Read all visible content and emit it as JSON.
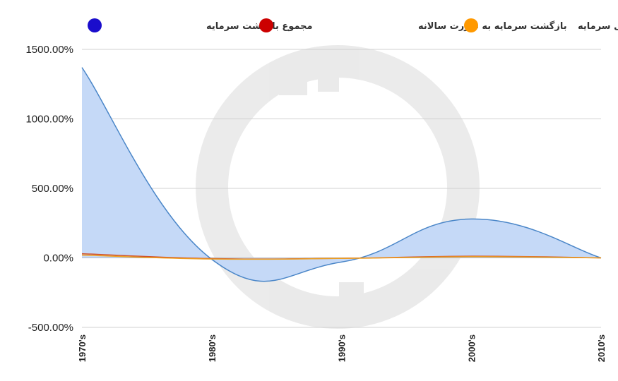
{
  "chart_data": {
    "type": "area",
    "categories": [
      "1970's",
      "1980's",
      "1990's",
      "2000's",
      "2010's"
    ],
    "series": [
      {
        "name": "مجموع بازگشت سرمایه",
        "values": [
          1370,
          -10,
          -30,
          280,
          0
        ],
        "color": "#1a0dcc",
        "line_color": "#4a86c8",
        "fill_color": "#c5d9f7"
      },
      {
        "name": "بازگشت سرمایه به صورت سالانه",
        "values": [
          30,
          -5,
          -3,
          12,
          0
        ],
        "color": "#cc0000",
        "line_color": "#d0502a"
      },
      {
        "name": "بازگشت واقعی سرمایه",
        "values": [
          20,
          -8,
          -4,
          8,
          0
        ],
        "color": "#ff9900",
        "line_color": "#f0a020"
      }
    ],
    "y_ticks": [
      "1500.00%",
      "1000.00%",
      "500.00%",
      "0.00%",
      "-500.00%"
    ],
    "y_tick_values": [
      1500,
      1000,
      500,
      0,
      -500
    ],
    "ylim": [
      -500,
      1500
    ],
    "grid": true,
    "legend_position": "top"
  }
}
